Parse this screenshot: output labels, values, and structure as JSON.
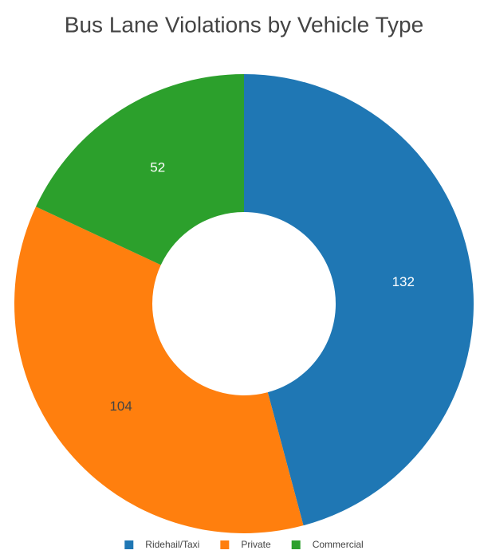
{
  "chart_data": {
    "type": "donut",
    "title": "Bus Lane Violations by Vehicle Type",
    "categories": [
      "Ridehail/Taxi",
      "Private",
      "Commercial"
    ],
    "values": [
      132,
      104,
      52
    ],
    "colors": [
      "#1f77b4",
      "#ff7f0e",
      "#2ca02c"
    ],
    "legend": "bottom"
  }
}
